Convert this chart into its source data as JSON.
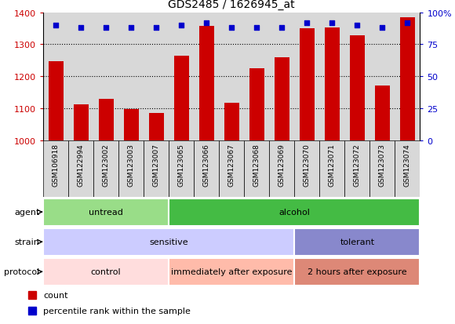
{
  "title": "GDS2485 / 1626945_at",
  "samples": [
    "GSM106918",
    "GSM122994",
    "GSM123002",
    "GSM123003",
    "GSM123007",
    "GSM123065",
    "GSM123066",
    "GSM123067",
    "GSM123068",
    "GSM123069",
    "GSM123070",
    "GSM123071",
    "GSM123072",
    "GSM123073",
    "GSM123074"
  ],
  "counts": [
    1248,
    1113,
    1130,
    1097,
    1085,
    1263,
    1358,
    1118,
    1225,
    1258,
    1350,
    1352,
    1328,
    1170,
    1385
  ],
  "percentile_ranks": [
    90,
    88,
    88,
    88,
    88,
    90,
    92,
    88,
    88,
    88,
    92,
    92,
    90,
    88,
    92
  ],
  "ylim_left": [
    1000,
    1400
  ],
  "ylim_right": [
    0,
    100
  ],
  "yticks_left": [
    1000,
    1100,
    1200,
    1300,
    1400
  ],
  "yticks_right": [
    0,
    25,
    50,
    75,
    100
  ],
  "bar_color": "#cc0000",
  "dot_color": "#0000cc",
  "background_color": "#d8d8d8",
  "agent_groups": [
    {
      "label": "untread",
      "start": 0,
      "end": 5,
      "color": "#99dd88"
    },
    {
      "label": "alcohol",
      "start": 5,
      "end": 15,
      "color": "#44bb44"
    }
  ],
  "strain_groups": [
    {
      "label": "sensitive",
      "start": 0,
      "end": 10,
      "color": "#ccccff"
    },
    {
      "label": "tolerant",
      "start": 10,
      "end": 15,
      "color": "#8888cc"
    }
  ],
  "protocol_groups": [
    {
      "label": "control",
      "start": 0,
      "end": 5,
      "color": "#ffdddd"
    },
    {
      "label": "immediately after exposure",
      "start": 5,
      "end": 10,
      "color": "#ffbbaa"
    },
    {
      "label": "2 hours after exposure",
      "start": 10,
      "end": 15,
      "color": "#dd8877"
    }
  ],
  "row_labels": [
    "agent",
    "strain",
    "protocol"
  ],
  "legend_items": [
    {
      "label": "count",
      "color": "#cc0000",
      "marker": "s"
    },
    {
      "label": "percentile rank within the sample",
      "color": "#0000cc",
      "marker": "s"
    }
  ]
}
